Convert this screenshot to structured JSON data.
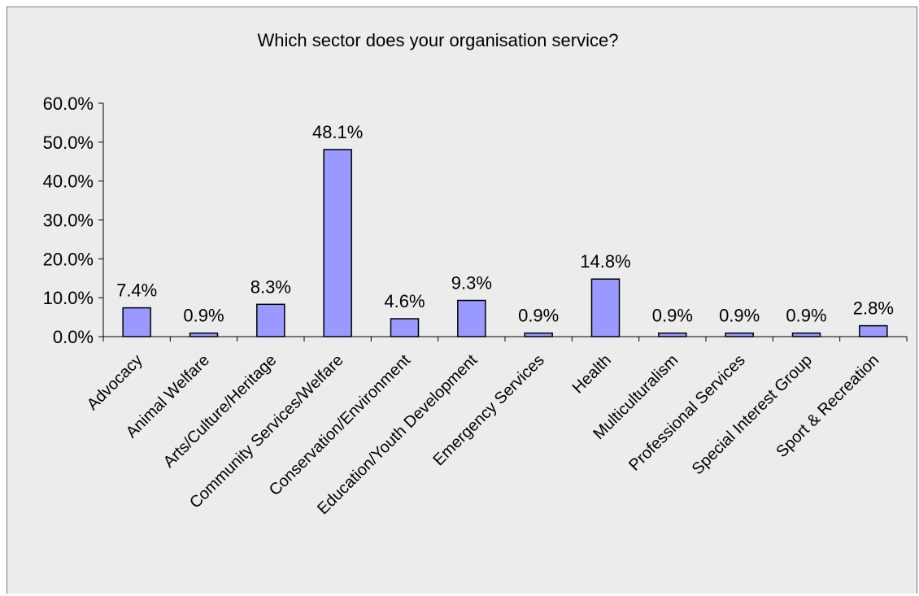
{
  "chart_data": {
    "type": "bar",
    "title": "Which sector does your organisation service?",
    "xlabel": "",
    "ylabel": "",
    "ylim": [
      0,
      60
    ],
    "ytick_labels": [
      "0.0%",
      "10.0%",
      "20.0%",
      "30.0%",
      "40.0%",
      "50.0%",
      "60.0%"
    ],
    "categories": [
      "Advocacy",
      "Animal Welfare",
      "Arts/Culture/Heritage",
      "Community Services/Welfare",
      "Conservation/Environment",
      "Education/Youth Development",
      "Emergency Services",
      "Health",
      "Multiculturalism",
      "Professional Services",
      "Special Interest Group",
      "Sport & Recreation"
    ],
    "values": [
      7.4,
      0.9,
      8.3,
      48.1,
      4.6,
      9.3,
      0.9,
      14.8,
      0.9,
      0.9,
      0.9,
      2.8
    ],
    "data_labels": [
      "7.4%",
      "0.9%",
      "8.3%",
      "48.1%",
      "4.6%",
      "9.3%",
      "0.9%",
      "14.8%",
      "0.9%",
      "0.9%",
      "0.9%",
      "2.8%"
    ],
    "grid": false,
    "legend": "none",
    "bar_color": "#9999ff",
    "background_color": "#ececec"
  }
}
